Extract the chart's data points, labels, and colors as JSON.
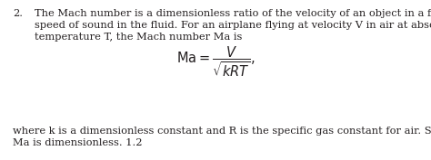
{
  "bg_color": "#ffffff",
  "text_color": "#231f20",
  "num_label": "2.",
  "line1": "The Mach number is a dimensionless ratio of the velocity of an object in a fluid to the",
  "line2": "speed of sound in the fluid. For an airplane flying at velocity V in air at absolute",
  "line3": "temperature T, the Mach number Ma is",
  "line4": "where k is a dimensionless constant and R is the specific gas constant for air. Show that",
  "line5": "Ma is dimensionless. 1.2",
  "font_size_text": 8.2,
  "font_size_formula": 10.5,
  "fig_width": 4.74,
  "fig_height": 1.77,
  "dpi": 100
}
